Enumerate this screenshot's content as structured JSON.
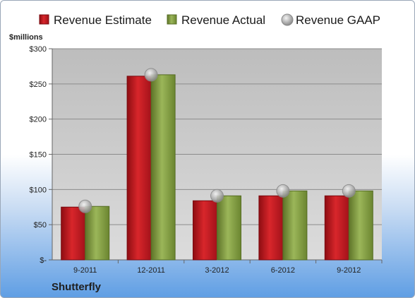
{
  "chart_data": {
    "type": "bar",
    "title": "",
    "ylabel": "$millions",
    "xlabel": "",
    "company": "Shutterfly",
    "categories": [
      "9-2011",
      "12-2011",
      "3-2012",
      "6-2012",
      "9-2012"
    ],
    "ylim": [
      0,
      300
    ],
    "yticks": [
      {
        "value": 0,
        "label": "$-"
      },
      {
        "value": 50,
        "label": "$50"
      },
      {
        "value": 100,
        "label": "$100"
      },
      {
        "value": 150,
        "label": "$150"
      },
      {
        "value": 200,
        "label": "$200"
      },
      {
        "value": 250,
        "label": "$250"
      },
      {
        "value": 300,
        "label": "$300"
      }
    ],
    "grid": true,
    "legend_position": "top",
    "series": [
      {
        "name": "Revenue Estimate",
        "kind": "bar",
        "color": "#c0131a",
        "values": [
          75,
          261,
          84,
          91,
          91
        ]
      },
      {
        "name": "Revenue Actual",
        "kind": "bar",
        "color": "#7f9a3c",
        "values": [
          76,
          263,
          91,
          98,
          98
        ]
      },
      {
        "name": "Revenue GAAP",
        "kind": "marker",
        "color": "#a8a8a8",
        "values": [
          76,
          263,
          91,
          98,
          98
        ]
      }
    ]
  }
}
